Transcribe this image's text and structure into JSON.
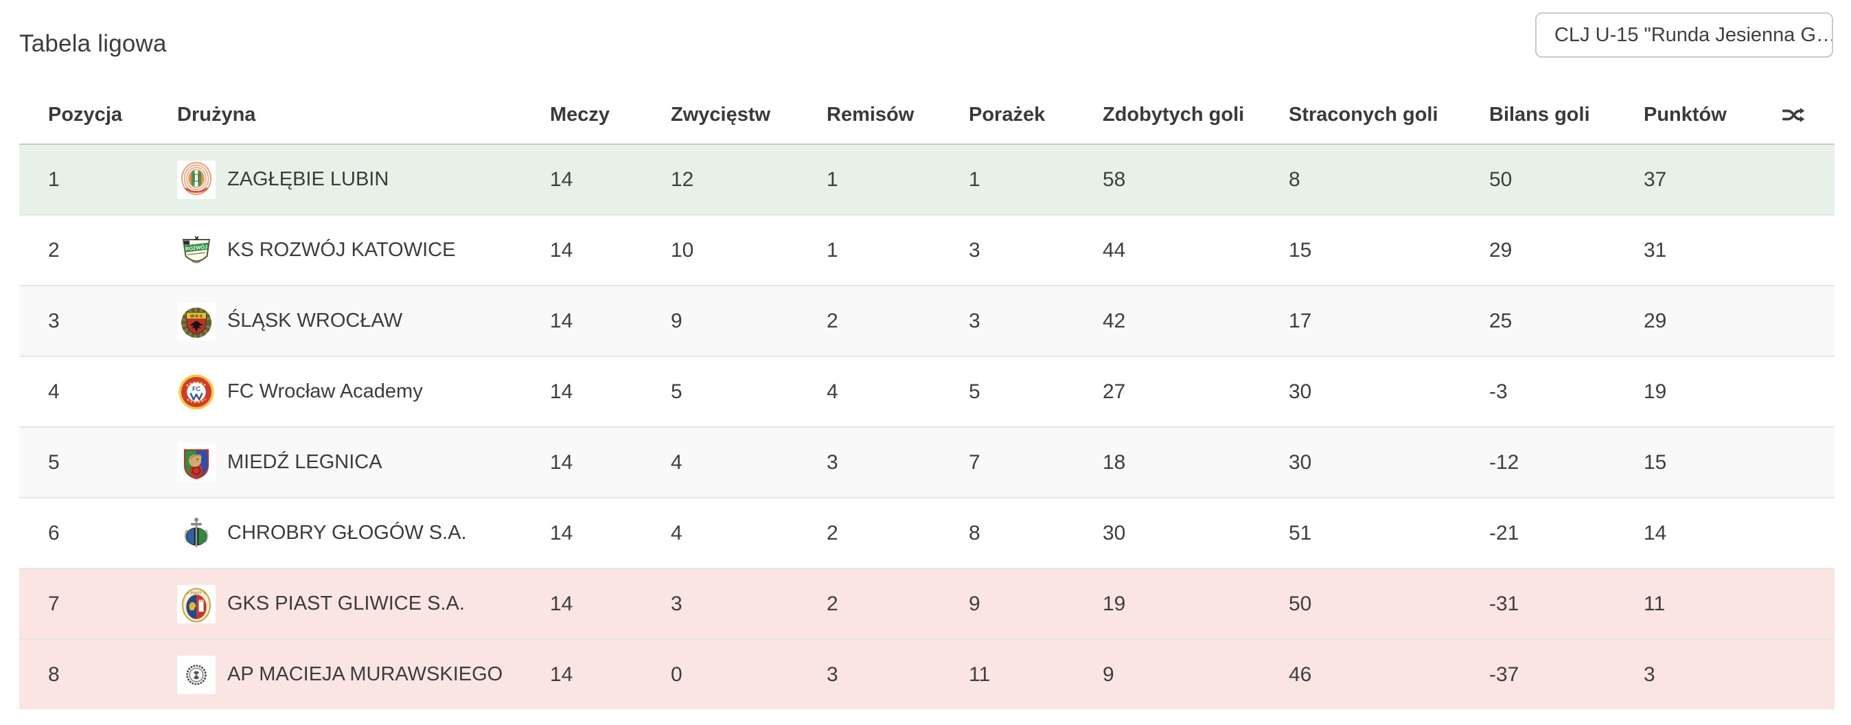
{
  "page": {
    "title": "Tabela ligowa"
  },
  "filter": {
    "selected_option": "CLJ U-15 \"Runda Jesienna G…",
    "chevron_icon": "chevron-down-icon"
  },
  "table": {
    "columns": [
      {
        "key": "position",
        "label": "Pozycja"
      },
      {
        "key": "team",
        "label": "Drużyna"
      },
      {
        "key": "matches",
        "label": "Meczy"
      },
      {
        "key": "wins",
        "label": "Zwycięstw"
      },
      {
        "key": "draws",
        "label": "Remisów"
      },
      {
        "key": "losses",
        "label": "Porażek"
      },
      {
        "key": "goals_for",
        "label": "Zdobytych goli"
      },
      {
        "key": "goals_against",
        "label": "Straconych goli"
      },
      {
        "key": "goal_balance",
        "label": "Bilans goli"
      },
      {
        "key": "points",
        "label": "Punktów"
      }
    ],
    "shuffle_icon": "shuffle-icon",
    "colors": {
      "promotion_bg": "#e7f1e8",
      "relegation_bg": "#fae5e3",
      "stripe_bg": "#f9f9f9"
    },
    "rows": [
      {
        "position": "1",
        "team": "ZAGŁĘBIE LUBIN",
        "crest": "zaglebie-lubin-crest",
        "matches": "14",
        "wins": "12",
        "draws": "1",
        "losses": "1",
        "goals_for": "58",
        "goals_against": "8",
        "goal_balance": "50",
        "points": "37",
        "zone": "promotion"
      },
      {
        "position": "2",
        "team": "KS ROZWÓJ KATOWICE",
        "crest": "ks-rozwoj-katowice-crest",
        "matches": "14",
        "wins": "10",
        "draws": "1",
        "losses": "3",
        "goals_for": "44",
        "goals_against": "15",
        "goal_balance": "29",
        "points": "31",
        "zone": null
      },
      {
        "position": "3",
        "team": "ŚLĄSK WROCŁAW",
        "crest": "slask-wroclaw-crest",
        "matches": "14",
        "wins": "9",
        "draws": "2",
        "losses": "3",
        "goals_for": "42",
        "goals_against": "17",
        "goal_balance": "25",
        "points": "29",
        "zone": null
      },
      {
        "position": "4",
        "team": "FC Wrocław Academy",
        "crest": "fc-wroclaw-academy-crest",
        "matches": "14",
        "wins": "5",
        "draws": "4",
        "losses": "5",
        "goals_for": "27",
        "goals_against": "30",
        "goal_balance": "-3",
        "points": "19",
        "zone": null
      },
      {
        "position": "5",
        "team": "MIEDŹ LEGNICA",
        "crest": "miedz-legnica-crest",
        "matches": "14",
        "wins": "4",
        "draws": "3",
        "losses": "7",
        "goals_for": "18",
        "goals_against": "30",
        "goal_balance": "-12",
        "points": "15",
        "zone": null
      },
      {
        "position": "6",
        "team": "CHROBRY GŁOGÓW S.A.",
        "crest": "chrobry-glogow-crest",
        "matches": "14",
        "wins": "4",
        "draws": "2",
        "losses": "8",
        "goals_for": "30",
        "goals_against": "51",
        "goal_balance": "-21",
        "points": "14",
        "zone": null
      },
      {
        "position": "7",
        "team": "GKS PIAST GLIWICE S.A.",
        "crest": "gks-piast-gliwice-crest",
        "matches": "14",
        "wins": "3",
        "draws": "2",
        "losses": "9",
        "goals_for": "19",
        "goals_against": "50",
        "goal_balance": "-31",
        "points": "11",
        "zone": "relegation"
      },
      {
        "position": "8",
        "team": "AP MACIEJA MURAWSKIEGO",
        "crest": "ap-macieja-murawskiego-crest",
        "matches": "14",
        "wins": "0",
        "draws": "3",
        "losses": "11",
        "goals_for": "9",
        "goals_against": "46",
        "goal_balance": "-37",
        "points": "3",
        "zone": "relegation"
      }
    ]
  }
}
